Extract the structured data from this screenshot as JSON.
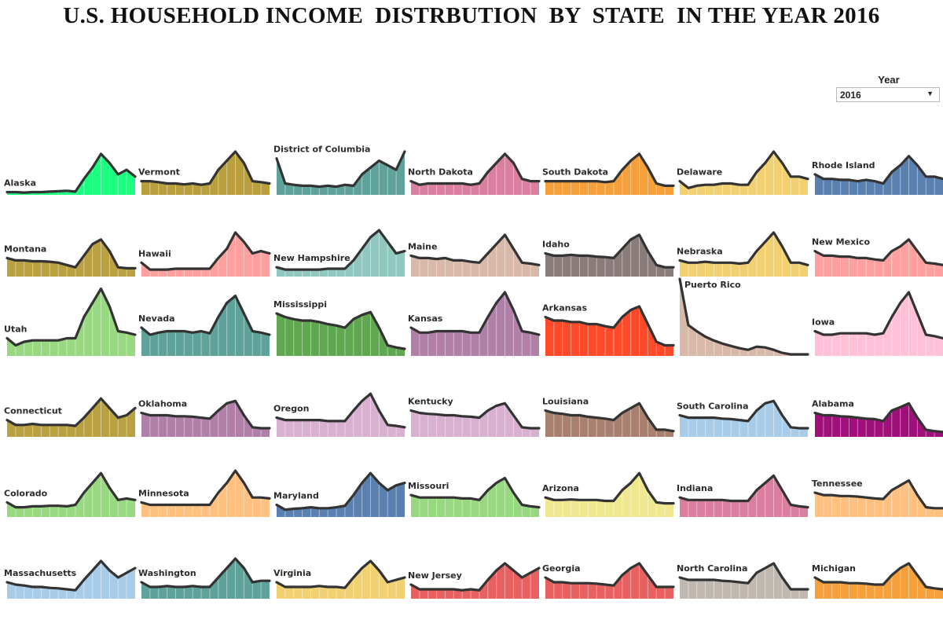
{
  "title": "U.S. HOUSEHOLD INCOME  DISTRBUTION  BY  STATE  IN THE YEAR 2016",
  "filter": {
    "label": "Year",
    "selected": "2016",
    "arrow_icon": "caret-down-icon"
  },
  "chart_data": {
    "type": "area",
    "ylim": [
      0,
      1
    ],
    "grid": false,
    "bins": 16,
    "series": [
      {
        "name": "Alaska",
        "color": "#1aff7f",
        "values": [
          0.06,
          0.06,
          0.05,
          0.06,
          0.06,
          0.07,
          0.08,
          0.09,
          0.07,
          0.35,
          0.6,
          0.9,
          0.7,
          0.45,
          0.55,
          0.4
        ]
      },
      {
        "name": "Vermont",
        "color": "#b9a03c",
        "values": [
          0.3,
          0.3,
          0.28,
          0.25,
          0.25,
          0.23,
          0.25,
          0.22,
          0.25,
          0.55,
          0.75,
          0.95,
          0.7,
          0.3,
          0.28,
          0.25
        ]
      },
      {
        "name": "District of Columbia",
        "color": "#5fa29a",
        "values": [
          0.8,
          0.25,
          0.22,
          0.2,
          0.2,
          0.18,
          0.2,
          0.18,
          0.22,
          0.2,
          0.45,
          0.6,
          0.75,
          0.65,
          0.55,
          0.95
        ]
      },
      {
        "name": "North Dakota",
        "color": "#da7fa0",
        "values": [
          0.3,
          0.22,
          0.25,
          0.25,
          0.25,
          0.25,
          0.25,
          0.22,
          0.25,
          0.5,
          0.7,
          0.9,
          0.7,
          0.35,
          0.3,
          0.3
        ]
      },
      {
        "name": "South Dakota",
        "color": "#f5a03a",
        "values": [
          0.3,
          0.3,
          0.3,
          0.3,
          0.3,
          0.3,
          0.3,
          0.28,
          0.3,
          0.55,
          0.75,
          0.9,
          0.6,
          0.25,
          0.2,
          0.2
        ]
      },
      {
        "name": "Delaware",
        "color": "#f0d070",
        "values": [
          0.3,
          0.15,
          0.2,
          0.22,
          0.22,
          0.25,
          0.25,
          0.22,
          0.22,
          0.5,
          0.7,
          0.95,
          0.7,
          0.4,
          0.4,
          0.35
        ]
      },
      {
        "name": "Rhode Island",
        "color": "#5a80b0",
        "values": [
          0.45,
          0.35,
          0.35,
          0.33,
          0.33,
          0.3,
          0.33,
          0.3,
          0.25,
          0.5,
          0.65,
          0.85,
          0.65,
          0.4,
          0.4,
          0.35
        ]
      },
      {
        "name": "Montana",
        "color": "#b9a040",
        "values": [
          0.4,
          0.35,
          0.35,
          0.33,
          0.33,
          0.32,
          0.3,
          0.25,
          0.2,
          0.45,
          0.7,
          0.8,
          0.55,
          0.2,
          0.18,
          0.18
        ]
      },
      {
        "name": "Hawaii",
        "color": "#ffa0a0",
        "values": [
          0.3,
          0.15,
          0.15,
          0.15,
          0.17,
          0.17,
          0.17,
          0.17,
          0.17,
          0.4,
          0.6,
          0.95,
          0.75,
          0.5,
          0.55,
          0.5
        ]
      },
      {
        "name": "New Hampshire",
        "color": "#90c8c0",
        "values": [
          0.2,
          0.15,
          0.15,
          0.15,
          0.15,
          0.15,
          0.17,
          0.17,
          0.17,
          0.35,
          0.6,
          0.85,
          1.0,
          0.75,
          0.5,
          0.55
        ]
      },
      {
        "name": "Maine",
        "color": "#d8b8a8",
        "values": [
          0.45,
          0.4,
          0.4,
          0.38,
          0.4,
          0.35,
          0.35,
          0.32,
          0.3,
          0.5,
          0.7,
          0.9,
          0.6,
          0.3,
          0.28,
          0.25
        ]
      },
      {
        "name": "Idaho",
        "color": "#8a7c7a",
        "values": [
          0.5,
          0.45,
          0.45,
          0.47,
          0.45,
          0.45,
          0.43,
          0.42,
          0.4,
          0.6,
          0.8,
          0.9,
          0.55,
          0.25,
          0.2,
          0.2
        ]
      },
      {
        "name": "Nebraska",
        "color": "#f0d070",
        "values": [
          0.35,
          0.3,
          0.3,
          0.32,
          0.3,
          0.3,
          0.3,
          0.28,
          0.3,
          0.55,
          0.75,
          0.95,
          0.65,
          0.3,
          0.3,
          0.25
        ]
      },
      {
        "name": "New Mexico",
        "color": "#ffa0a0",
        "values": [
          0.55,
          0.45,
          0.45,
          0.43,
          0.43,
          0.4,
          0.4,
          0.37,
          0.35,
          0.55,
          0.65,
          0.8,
          0.55,
          0.3,
          0.28,
          0.25
        ]
      },
      {
        "name": "Utah",
        "color": "#98d880",
        "values": [
          0.25,
          0.15,
          0.2,
          0.22,
          0.22,
          0.22,
          0.22,
          0.25,
          0.25,
          0.55,
          0.75,
          0.95,
          0.7,
          0.35,
          0.33,
          0.3
        ]
      },
      {
        "name": "Nevada",
        "color": "#5fa29a",
        "values": [
          0.4,
          0.3,
          0.33,
          0.35,
          0.35,
          0.35,
          0.33,
          0.35,
          0.32,
          0.55,
          0.75,
          0.85,
          0.6,
          0.35,
          0.33,
          0.3
        ]
      },
      {
        "name": "Mississippi",
        "color": "#60a850",
        "values": [
          0.6,
          0.55,
          0.52,
          0.5,
          0.5,
          0.48,
          0.45,
          0.43,
          0.4,
          0.52,
          0.58,
          0.62,
          0.4,
          0.15,
          0.12,
          0.1
        ]
      },
      {
        "name": "Kansas",
        "color": "#b080a8",
        "values": [
          0.4,
          0.33,
          0.33,
          0.35,
          0.35,
          0.35,
          0.35,
          0.33,
          0.33,
          0.55,
          0.75,
          0.9,
          0.65,
          0.35,
          0.33,
          0.3
        ]
      },
      {
        "name": "Arkansas",
        "color": "#ff4a2a",
        "values": [
          0.55,
          0.5,
          0.5,
          0.48,
          0.48,
          0.45,
          0.45,
          0.42,
          0.4,
          0.55,
          0.65,
          0.7,
          0.45,
          0.2,
          0.15,
          0.15
        ]
      },
      {
        "name": "Puerto Rico",
        "color": "#d8b8a8",
        "values": [
          1.0,
          0.4,
          0.32,
          0.25,
          0.2,
          0.16,
          0.13,
          0.1,
          0.08,
          0.12,
          0.11,
          0.08,
          0.04,
          0.02,
          0.02,
          0.02
        ]
      },
      {
        "name": "Iowa",
        "color": "#ffc0d8",
        "values": [
          0.35,
          0.3,
          0.3,
          0.32,
          0.32,
          0.32,
          0.32,
          0.3,
          0.32,
          0.55,
          0.75,
          0.9,
          0.6,
          0.3,
          0.28,
          0.25
        ]
      },
      {
        "name": "Connecticut",
        "color": "#b9a040",
        "values": [
          0.35,
          0.25,
          0.25,
          0.27,
          0.25,
          0.25,
          0.25,
          0.25,
          0.23,
          0.4,
          0.6,
          0.8,
          0.6,
          0.4,
          0.45,
          0.6
        ]
      },
      {
        "name": "Oklahoma",
        "color": "#b080a8",
        "values": [
          0.5,
          0.45,
          0.45,
          0.45,
          0.43,
          0.43,
          0.42,
          0.4,
          0.38,
          0.55,
          0.7,
          0.75,
          0.45,
          0.2,
          0.18,
          0.18
        ]
      },
      {
        "name": "Oregon",
        "color": "#d8b0d0",
        "values": [
          0.4,
          0.35,
          0.35,
          0.35,
          0.35,
          0.35,
          0.33,
          0.33,
          0.33,
          0.55,
          0.75,
          0.9,
          0.55,
          0.25,
          0.23,
          0.2
        ]
      },
      {
        "name": "Kentucky",
        "color": "#d8b0d0",
        "values": [
          0.55,
          0.5,
          0.48,
          0.47,
          0.45,
          0.45,
          0.43,
          0.42,
          0.4,
          0.55,
          0.65,
          0.7,
          0.45,
          0.2,
          0.18,
          0.18
        ]
      },
      {
        "name": "Louisiana",
        "color": "#a88070",
        "values": [
          0.55,
          0.5,
          0.48,
          0.45,
          0.45,
          0.42,
          0.4,
          0.38,
          0.35,
          0.5,
          0.6,
          0.7,
          0.4,
          0.15,
          0.15,
          0.12
        ]
      },
      {
        "name": "South Carolina",
        "color": "#a8cce8",
        "values": [
          0.45,
          0.4,
          0.4,
          0.4,
          0.4,
          0.38,
          0.37,
          0.35,
          0.33,
          0.55,
          0.7,
          0.75,
          0.45,
          0.2,
          0.18,
          0.18
        ]
      },
      {
        "name": "Alabama",
        "color": "#a0107a",
        "values": [
          0.5,
          0.45,
          0.45,
          0.43,
          0.42,
          0.4,
          0.38,
          0.37,
          0.33,
          0.55,
          0.62,
          0.7,
          0.4,
          0.15,
          0.12,
          0.1
        ]
      },
      {
        "name": "Colorado",
        "color": "#98d880",
        "values": [
          0.3,
          0.2,
          0.2,
          0.22,
          0.22,
          0.23,
          0.23,
          0.22,
          0.25,
          0.5,
          0.7,
          0.9,
          0.6,
          0.35,
          0.38,
          0.35
        ]
      },
      {
        "name": "Minnesota",
        "color": "#ffc080",
        "values": [
          0.3,
          0.25,
          0.25,
          0.25,
          0.25,
          0.25,
          0.25,
          0.25,
          0.25,
          0.5,
          0.7,
          0.95,
          0.7,
          0.4,
          0.4,
          0.38
        ]
      },
      {
        "name": "Maryland",
        "color": "#5a80b0",
        "values": [
          0.25,
          0.15,
          0.17,
          0.18,
          0.2,
          0.18,
          0.18,
          0.2,
          0.23,
          0.45,
          0.7,
          0.9,
          0.7,
          0.55,
          0.65,
          0.7
        ]
      },
      {
        "name": "Missouri",
        "color": "#98d880",
        "values": [
          0.45,
          0.4,
          0.4,
          0.4,
          0.4,
          0.4,
          0.38,
          0.38,
          0.35,
          0.55,
          0.7,
          0.8,
          0.5,
          0.25,
          0.22,
          0.2
        ]
      },
      {
        "name": "Arizona",
        "color": "#f0e890",
        "values": [
          0.4,
          0.35,
          0.35,
          0.36,
          0.35,
          0.35,
          0.35,
          0.33,
          0.33,
          0.55,
          0.7,
          0.9,
          0.55,
          0.3,
          0.28,
          0.28
        ]
      },
      {
        "name": "Indiana",
        "color": "#da7fa0",
        "values": [
          0.4,
          0.35,
          0.35,
          0.35,
          0.35,
          0.35,
          0.33,
          0.33,
          0.33,
          0.55,
          0.7,
          0.85,
          0.55,
          0.25,
          0.22,
          0.2
        ]
      },
      {
        "name": "Tennessee",
        "color": "#ffc080",
        "values": [
          0.5,
          0.45,
          0.45,
          0.43,
          0.43,
          0.42,
          0.4,
          0.38,
          0.37,
          0.55,
          0.65,
          0.75,
          0.45,
          0.2,
          0.18,
          0.18
        ]
      },
      {
        "name": "Massachusetts",
        "color": "#a8cce8",
        "values": [
          0.35,
          0.3,
          0.28,
          0.25,
          0.25,
          0.23,
          0.22,
          0.2,
          0.18,
          0.4,
          0.6,
          0.8,
          0.6,
          0.45,
          0.55,
          0.65
        ]
      },
      {
        "name": "Washington",
        "color": "#5fa29a",
        "values": [
          0.35,
          0.25,
          0.25,
          0.27,
          0.25,
          0.25,
          0.27,
          0.25,
          0.25,
          0.45,
          0.65,
          0.85,
          0.65,
          0.35,
          0.38,
          0.38
        ]
      },
      {
        "name": "Virginia",
        "color": "#f0d070",
        "values": [
          0.35,
          0.25,
          0.25,
          0.25,
          0.25,
          0.27,
          0.25,
          0.25,
          0.23,
          0.45,
          0.65,
          0.8,
          0.6,
          0.35,
          0.4,
          0.45
        ]
      },
      {
        "name": "New Jersey",
        "color": "#e86060",
        "values": [
          0.3,
          0.2,
          0.2,
          0.2,
          0.2,
          0.2,
          0.18,
          0.2,
          0.18,
          0.4,
          0.6,
          0.75,
          0.6,
          0.45,
          0.55,
          0.65
        ]
      },
      {
        "name": "Georgia",
        "color": "#e86060",
        "values": [
          0.45,
          0.35,
          0.35,
          0.33,
          0.33,
          0.33,
          0.32,
          0.3,
          0.28,
          0.5,
          0.65,
          0.75,
          0.5,
          0.25,
          0.25,
          0.25
        ]
      },
      {
        "name": "North Carolina",
        "color": "#c0b8b0",
        "values": [
          0.45,
          0.4,
          0.4,
          0.4,
          0.4,
          0.38,
          0.37,
          0.35,
          0.33,
          0.55,
          0.65,
          0.75,
          0.45,
          0.2,
          0.2,
          0.2
        ]
      },
      {
        "name": "Michigan",
        "color": "#f5a03a",
        "values": [
          0.45,
          0.35,
          0.35,
          0.35,
          0.33,
          0.33,
          0.32,
          0.3,
          0.3,
          0.5,
          0.65,
          0.75,
          0.5,
          0.25,
          0.22,
          0.2
        ]
      }
    ]
  }
}
